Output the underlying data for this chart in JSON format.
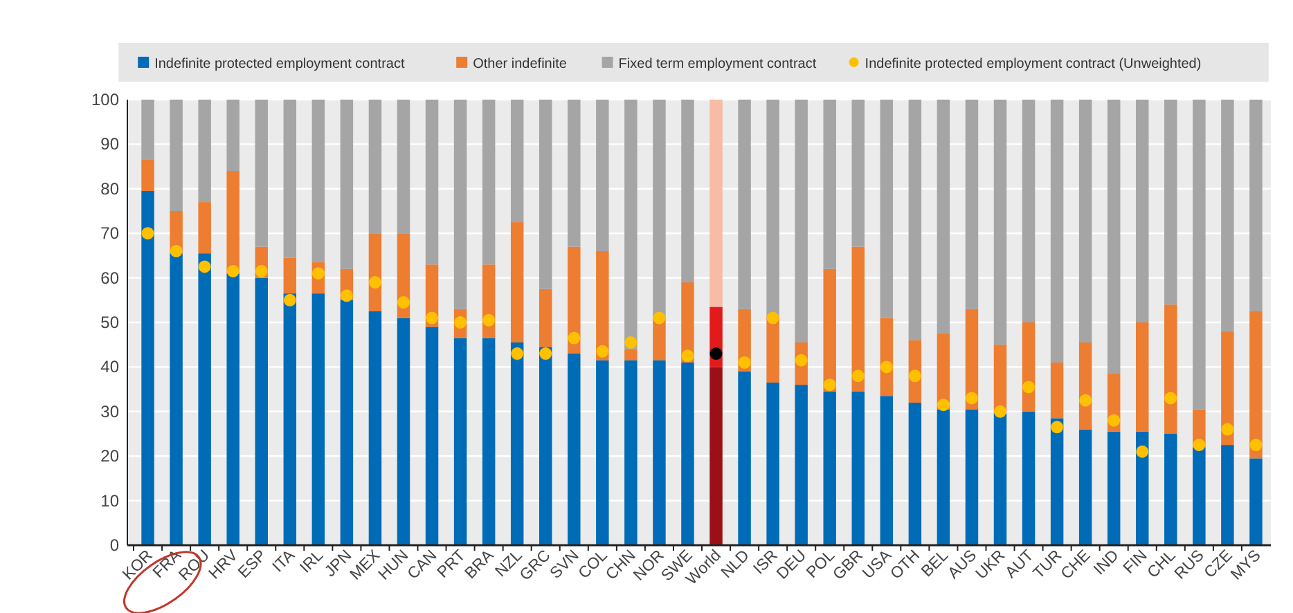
{
  "chart_data": {
    "type": "bar",
    "stacked": true,
    "legend": "top",
    "grid": "y",
    "ylim": [
      0,
      100
    ],
    "yticks": [
      0,
      10,
      20,
      30,
      40,
      50,
      60,
      70,
      80,
      90,
      100
    ],
    "categories": [
      "KOR",
      "FRA",
      "ROU",
      "HRV",
      "ESP",
      "ITA",
      "IRL",
      "JPN",
      "MEX",
      "HUN",
      "CAN",
      "PRT",
      "BRA",
      "NZL",
      "GRC",
      "SVN",
      "COL",
      "CHN",
      "NOR",
      "SWE",
      "World",
      "NLD",
      "ISR",
      "DEU",
      "POL",
      "GBR",
      "USA",
      "OTH",
      "BEL",
      "AUS",
      "UKR",
      "AUT",
      "TUR",
      "CHE",
      "IND",
      "FIN",
      "CHL",
      "RUS",
      "CZE",
      "MYS"
    ],
    "series": [
      {
        "name": "Indefinite protected employment contract",
        "color": "#006bb6",
        "colors": [
          "#006bb6",
          "#006bb6",
          "#006bb6",
          "#006bb6",
          "#006bb6",
          "#006bb6",
          "#006bb6",
          "#006bb6",
          "#006bb6",
          "#006bb6",
          "#006bb6",
          "#006bb6",
          "#006bb6",
          "#006bb6",
          "#006bb6",
          "#006bb6",
          "#006bb6",
          "#006bb6",
          "#006bb6",
          "#006bb6",
          "#9b1016",
          "#006bb6",
          "#006bb6",
          "#006bb6",
          "#006bb6",
          "#006bb6",
          "#006bb6",
          "#006bb6",
          "#006bb6",
          "#006bb6",
          "#006bb6",
          "#006bb6",
          "#006bb6",
          "#006bb6",
          "#006bb6",
          "#006bb6",
          "#006bb6",
          "#006bb6",
          "#006bb6",
          "#006bb6"
        ],
        "values": [
          79.5,
          65.5,
          65.5,
          61,
          60,
          56.5,
          56.5,
          55,
          52.5,
          51,
          49,
          46.5,
          46.5,
          45.5,
          44.5,
          43,
          41.5,
          41.5,
          41.5,
          41,
          40,
          39,
          36.5,
          36,
          34.5,
          34.5,
          33.5,
          32,
          30.5,
          30.5,
          29.5,
          30,
          28.5,
          26,
          25.5,
          25.5,
          25,
          22,
          22.5,
          19.5
        ]
      },
      {
        "name": "Other indefinite",
        "color": "#ed7d31",
        "colors": [
          "#ed7d31",
          "#ed7d31",
          "#ed7d31",
          "#ed7d31",
          "#ed7d31",
          "#ed7d31",
          "#ed7d31",
          "#ed7d31",
          "#ed7d31",
          "#ed7d31",
          "#ed7d31",
          "#ed7d31",
          "#ed7d31",
          "#ed7d31",
          "#ed7d31",
          "#ed7d31",
          "#ed7d31",
          "#ed7d31",
          "#ed7d31",
          "#ed7d31",
          "#e31a1c",
          "#ed7d31",
          "#ed7d31",
          "#ed7d31",
          "#ed7d31",
          "#ed7d31",
          "#ed7d31",
          "#ed7d31",
          "#ed7d31",
          "#ed7d31",
          "#ed7d31",
          "#ed7d31",
          "#ed7d31",
          "#ed7d31",
          "#ed7d31",
          "#ed7d31",
          "#ed7d31",
          "#ed7d31",
          "#ed7d31",
          "#ed7d31"
        ],
        "values": [
          7,
          9.5,
          11.5,
          23,
          7,
          8,
          7,
          7,
          17.5,
          19,
          14,
          6.5,
          16.5,
          27,
          13,
          24,
          24.5,
          2.5,
          9.5,
          18,
          13.5,
          14,
          15,
          9.5,
          27.5,
          32.5,
          17.5,
          14,
          17,
          22.5,
          15.5,
          20,
          12.5,
          19.5,
          13,
          24.5,
          29,
          8.5,
          25.5,
          33
        ]
      },
      {
        "name": "Fixed term employment contract",
        "color": "#a5a5a5",
        "colors": [
          "#a5a5a5",
          "#a5a5a5",
          "#a5a5a5",
          "#a5a5a5",
          "#a5a5a5",
          "#a5a5a5",
          "#a5a5a5",
          "#a5a5a5",
          "#a5a5a5",
          "#a5a5a5",
          "#a5a5a5",
          "#a5a5a5",
          "#a5a5a5",
          "#a5a5a5",
          "#a5a5a5",
          "#a5a5a5",
          "#a5a5a5",
          "#a5a5a5",
          "#a5a5a5",
          "#a5a5a5",
          "#f8bba5",
          "#a5a5a5",
          "#a5a5a5",
          "#a5a5a5",
          "#a5a5a5",
          "#a5a5a5",
          "#a5a5a5",
          "#a5a5a5",
          "#a5a5a5",
          "#a5a5a5",
          "#a5a5a5",
          "#a5a5a5",
          "#a5a5a5",
          "#a5a5a5",
          "#a5a5a5",
          "#a5a5a5",
          "#a5a5a5",
          "#a5a5a5",
          "#a5a5a5",
          "#a5a5a5"
        ],
        "values": [
          13.5,
          25,
          23,
          16,
          33,
          35.5,
          36.5,
          38,
          30,
          30,
          37,
          47,
          37,
          27.5,
          42.5,
          33,
          34,
          56,
          49,
          41,
          46.5,
          47,
          48.5,
          54.5,
          38,
          33,
          49,
          54,
          52.5,
          47,
          55,
          50,
          59,
          54.5,
          61.5,
          50,
          46,
          69.5,
          52,
          47.5
        ]
      },
      {
        "name": "Indefinite protected employment contract (Unweighted)",
        "type": "scatter",
        "marker": "circle",
        "color": "#ffc000",
        "colors": [
          "#ffc000",
          "#ffc000",
          "#ffc000",
          "#ffc000",
          "#ffc000",
          "#ffc000",
          "#ffc000",
          "#ffc000",
          "#ffc000",
          "#ffc000",
          "#ffc000",
          "#ffc000",
          "#ffc000",
          "#ffc000",
          "#ffc000",
          "#ffc000",
          "#ffc000",
          "#ffc000",
          "#ffc000",
          "#ffc000",
          "#000000",
          "#ffc000",
          "#ffc000",
          "#ffc000",
          "#ffc000",
          "#ffc000",
          "#ffc000",
          "#ffc000",
          "#ffc000",
          "#ffc000",
          "#ffc000",
          "#ffc000",
          "#ffc000",
          "#ffc000",
          "#ffc000",
          "#ffc000",
          "#ffc000",
          "#ffc000",
          "#ffc000",
          "#ffc000"
        ],
        "x": [
          "KOR",
          "FRA",
          "ROU",
          "HRV",
          "ESP",
          "ITA",
          "IRL",
          "JPN",
          "MEX",
          "HUN",
          "CAN",
          "PRT",
          "BRA",
          "NZL",
          "GRC",
          "SVN",
          "COL",
          "CHN",
          "NOR",
          "SWE",
          "World",
          "NLD",
          "ISR",
          "DEU",
          "POL",
          "GBR",
          "USA",
          "OTH",
          "BEL",
          "AUS",
          "UKR",
          "AUT",
          "TUR",
          "CHE",
          "IND",
          "FIN",
          "CHL",
          "RUS",
          "CZE",
          "MYS"
        ],
        "values": [
          70,
          66,
          62.5,
          61.5,
          61.5,
          55,
          61,
          56,
          59,
          54.5,
          51,
          50,
          50.5,
          43,
          43,
          46.5,
          43.5,
          45.5,
          51,
          42.5,
          43,
          41,
          51,
          41.5,
          36,
          38,
          40,
          38,
          31.5,
          33,
          30,
          35.5,
          26.5,
          32.5,
          28,
          21,
          33,
          22.5,
          26,
          22.5
        ]
      }
    ]
  }
}
